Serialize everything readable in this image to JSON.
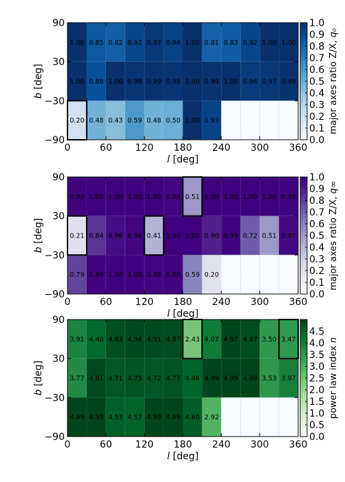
{
  "chart_data": [
    {
      "type": "heatmap",
      "xlabel": "l [deg]",
      "ylabel": "b [deg]",
      "xlim": [
        0,
        360
      ],
      "ylim": [
        -90,
        90
      ],
      "x_ticks": [
        "0",
        "60",
        "120",
        "180",
        "240",
        "300",
        "360"
      ],
      "y_ticks": [
        "90",
        "30",
        "−30",
        "−90"
      ],
      "colorbar": {
        "label": "major axes ratio Z/X, q₀",
        "colormap": "Blues",
        "range": [
          0.0,
          1.0
        ],
        "ticks": [
          "1.0",
          "0.9",
          "0.8",
          "0.7",
          "0.6",
          "0.5",
          "0.4",
          "0.3",
          "0.2",
          "0.1",
          "0.0"
        ]
      },
      "rows": [
        {
          "b_range": [
            30,
            90
          ],
          "values": [
            1.0,
            0.85,
            0.82,
            0.92,
            0.97,
            0.94,
            1.0,
            0.81,
            0.83,
            0.92,
            1.0,
            1.0
          ]
        },
        {
          "b_range": [
            -30,
            30
          ],
          "values": [
            1.0,
            0.88,
            1.0,
            0.98,
            0.99,
            0.98,
            1.0,
            0.99,
            1.0,
            0.96,
            0.97,
            0.99
          ]
        },
        {
          "b_range": [
            -90,
            -30
          ],
          "values": [
            0.2,
            0.48,
            0.43,
            0.59,
            0.48,
            0.5,
            1.0,
            0.93,
            null,
            null,
            null,
            null
          ]
        }
      ],
      "highlighted_cells": [
        [
          2,
          0
        ]
      ]
    },
    {
      "type": "heatmap",
      "xlabel": "l [deg]",
      "ylabel": "b [deg]",
      "xlim": [
        0,
        360
      ],
      "ylim": [
        -90,
        90
      ],
      "x_ticks": [
        "0",
        "60",
        "120",
        "180",
        "240",
        "300",
        "360"
      ],
      "y_ticks": [
        "90",
        "30",
        "−30",
        "−90"
      ],
      "colorbar": {
        "label": "major axes ratio Z/X, q∞",
        "colormap": "Purples",
        "range": [
          0.0,
          1.0
        ],
        "ticks": [
          "1.0",
          "0.9",
          "0.8",
          "0.7",
          "0.6",
          "0.5",
          "0.4",
          "0.3",
          "0.2",
          "0.1",
          "0.0"
        ]
      },
      "rows": [
        {
          "b_range": [
            30,
            90
          ],
          "values": [
            0.99,
            1.0,
            1.0,
            1.0,
            1.0,
            0.98,
            0.51,
            1.0,
            1.0,
            1.0,
            1.0,
            0.99
          ]
        },
        {
          "b_range": [
            -30,
            30
          ],
          "values": [
            0.21,
            0.84,
            0.96,
            0.98,
            0.41,
            1.0,
            1.0,
            0.9,
            0.99,
            0.72,
            0.51,
            0.97
          ]
        },
        {
          "b_range": [
            -90,
            -30
          ],
          "values": [
            0.79,
            0.99,
            1.0,
            1.0,
            0.98,
            0.99,
            0.59,
            0.2,
            null,
            null,
            null,
            null
          ]
        }
      ],
      "highlighted_cells": [
        [
          0,
          6
        ],
        [
          1,
          0
        ],
        [
          1,
          4
        ]
      ]
    },
    {
      "type": "heatmap",
      "xlabel": "l [deg]",
      "ylabel": "b [deg]",
      "xlim": [
        0,
        360
      ],
      "ylim": [
        -90,
        90
      ],
      "x_ticks": [
        "0",
        "60",
        "120",
        "180",
        "240",
        "300",
        "360"
      ],
      "y_ticks": [
        "90",
        "30",
        "−30",
        "−90"
      ],
      "colorbar": {
        "label": "power law index n",
        "colormap": "Greens",
        "range": [
          0.0,
          5.0
        ],
        "ticks": [
          "4.5",
          "4.0",
          "3.5",
          "3.0",
          "2.5",
          "2.0",
          "1.5",
          "1.0",
          "0.5",
          "0.0"
        ]
      },
      "rows": [
        {
          "b_range": [
            30,
            90
          ],
          "values": [
            3.91,
            4.4,
            4.83,
            4.94,
            4.91,
            4.87,
            2.43,
            4.07,
            4.97,
            4.87,
            3.5,
            3.47
          ]
        },
        {
          "b_range": [
            -30,
            30
          ],
          "values": [
            3.77,
            4.91,
            4.71,
            4.75,
            4.72,
            4.77,
            4.46,
            4.99,
            4.99,
            4.99,
            3.53,
            3.97
          ]
        },
        {
          "b_range": [
            -90,
            -30
          ],
          "values": [
            4.99,
            4.99,
            4.57,
            4.53,
            4.99,
            4.99,
            4.6,
            2.92,
            null,
            null,
            null,
            null
          ]
        }
      ],
      "highlighted_cells": [
        [
          0,
          6
        ],
        [
          0,
          11
        ]
      ]
    }
  ]
}
